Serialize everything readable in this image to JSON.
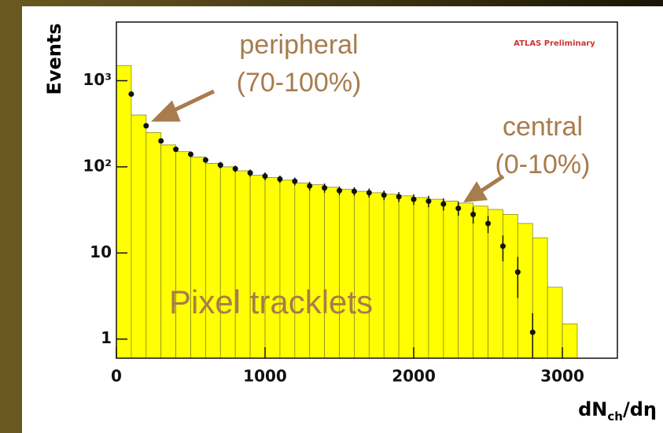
{
  "chart_data": {
    "type": "histogram",
    "ylabel": "Events",
    "xlabel": [
      "dN",
      "ch",
      "/dη"
    ],
    "badge": "ATLAS Preliminary",
    "annotations": [
      "peripheral",
      "(70-100%)",
      "central",
      "(0-10%)",
      "Pixel tracklets"
    ],
    "bins": [
      0,
      100,
      200,
      300,
      400,
      500,
      600,
      700,
      800,
      900,
      1000,
      1100,
      1200,
      1300,
      1400,
      1500,
      1600,
      1700,
      1800,
      1900,
      2000,
      2100,
      2200,
      2300,
      2400,
      2500,
      2600,
      2700,
      2800,
      2900,
      3000,
      3100
    ],
    "values": [
      1500,
      400,
      250,
      180,
      150,
      130,
      110,
      100,
      90,
      80,
      75,
      70,
      65,
      62,
      58,
      55,
      52,
      50,
      48,
      46,
      44,
      42,
      40,
      38,
      35,
      32,
      28,
      22,
      15,
      4,
      1.5
    ],
    "color": "#ffff00",
    "points": {
      "color": "#111111",
      "x": [
        100,
        200,
        300,
        400,
        500,
        600,
        700,
        800,
        900,
        1000,
        1100,
        1200,
        1300,
        1400,
        1500,
        1600,
        1700,
        1800,
        1900,
        2000,
        2100,
        2200,
        2300,
        2400,
        2500,
        2600,
        2700,
        2800
      ],
      "values": [
        700,
        300,
        200,
        160,
        140,
        120,
        105,
        95,
        85,
        78,
        72,
        68,
        60,
        57,
        53,
        52,
        50,
        47,
        45,
        42,
        40,
        37,
        33,
        28,
        22,
        12,
        6,
        1.2
      ],
      "errors": [
        20,
        15,
        12,
        10,
        10,
        9,
        9,
        8,
        8,
        8,
        7,
        7,
        7,
        7,
        6,
        6,
        6,
        6,
        6,
        6,
        6,
        6,
        6,
        6,
        5,
        4,
        3,
        0.8
      ]
    },
    "log_y": true,
    "xlim": [
      0,
      3370
    ],
    "ylim": [
      0.6,
      4800
    ],
    "xticks": [
      0,
      1000,
      2000,
      3000
    ],
    "yticks": [
      1,
      10,
      {
        "value": 100,
        "label": "10²"
      },
      {
        "value": 1000,
        "label": "10³"
      }
    ]
  }
}
